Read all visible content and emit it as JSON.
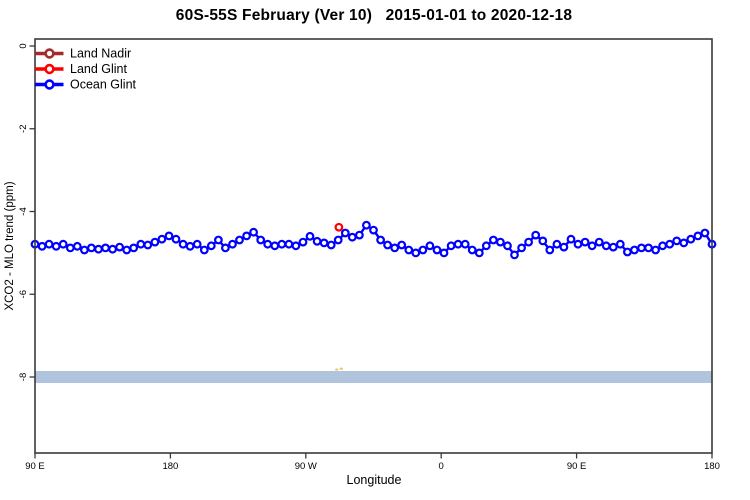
{
  "title": "60S-55S February (Ver 10)   2015-01-01 to 2020-12-18",
  "axes": {
    "x_label": "Longitude",
    "y_label": "XCO2 - MLO trend (ppm)",
    "x_tick_labels": [
      "90 E",
      "180",
      "90 W",
      "0",
      "90 E",
      "180"
    ],
    "y_tick_labels": [
      "0",
      "-2",
      "-4",
      "-6",
      "-8"
    ]
  },
  "legend": {
    "items": [
      {
        "label": "Land Nadir",
        "color": "#A52A2A"
      },
      {
        "label": "Land Glint",
        "color": "#FF0000"
      },
      {
        "label": "Ocean Glint",
        "color": "#0000FF"
      }
    ]
  },
  "colors": {
    "axis": "#3a3a3a",
    "band": "#B0C4DE",
    "yellow_mark": "#E8C96E",
    "marker_fill": "#ffffff"
  },
  "chart_data": {
    "type": "line",
    "title": "60S-55S February (Ver 10)   2015-01-01 to 2020-12-18",
    "xlabel": "Longitude",
    "ylabel": "XCO2 - MLO trend (ppm)",
    "x_axis": {
      "start_deg": 90,
      "end_deg": 540,
      "tick_positions_deg": [
        90,
        180,
        270,
        360,
        450,
        540
      ],
      "tick_labels": [
        "90 E",
        "180",
        "90 W",
        "0",
        "90 E",
        "180"
      ],
      "note": "longitude axis wraps eastward starting at 90E"
    },
    "ylim": [
      -9.84,
      0.17
    ],
    "y_tick_values": [
      0,
      -2,
      -4,
      -6,
      -8
    ],
    "grid": false,
    "legend_position": "top-left",
    "band": {
      "value": -8.0,
      "half_width": 0.145,
      "color": "#B0C4DE"
    },
    "extra_marks": [
      {
        "name": "yellow-dash",
        "color": "#E8C96E",
        "lon_deg": 290.6,
        "value": -7.82
      },
      {
        "name": "yellow-dash",
        "color": "#E8C96E",
        "lon_deg": 293.6,
        "value": -7.8
      }
    ],
    "series": [
      {
        "name": "Land Nadir",
        "color": "#A52A2A",
        "marker": "open-circle",
        "points": []
      },
      {
        "name": "Land Glint",
        "color": "#FF0000",
        "marker": "open-circle",
        "points": [
          {
            "lon_deg": 292,
            "value": -4.38
          }
        ]
      },
      {
        "name": "Ocean Glint",
        "color": "#0000FF",
        "marker": "open-circle",
        "x_start_deg": 90,
        "x_step_deg": 4.6875,
        "values": [
          -4.79,
          -4.84,
          -4.79,
          -4.84,
          -4.79,
          -4.88,
          -4.84,
          -4.93,
          -4.88,
          -4.91,
          -4.88,
          -4.91,
          -4.86,
          -4.93,
          -4.88,
          -4.79,
          -4.81,
          -4.74,
          -4.67,
          -4.59,
          -4.67,
          -4.79,
          -4.84,
          -4.79,
          -4.93,
          -4.83,
          -4.69,
          -4.88,
          -4.79,
          -4.69,
          -4.59,
          -4.5,
          -4.69,
          -4.79,
          -4.83,
          -4.79,
          -4.79,
          -4.83,
          -4.74,
          -4.6,
          -4.72,
          -4.76,
          -4.81,
          -4.69,
          -4.52,
          -4.62,
          -4.57,
          -4.33,
          -4.45,
          -4.69,
          -4.81,
          -4.88,
          -4.81,
          -4.93,
          -5.0,
          -4.93,
          -4.83,
          -4.93,
          -5.0,
          -4.83,
          -4.79,
          -4.79,
          -4.93,
          -5.0,
          -4.83,
          -4.69,
          -4.74,
          -4.83,
          -5.05,
          -4.88,
          -4.74,
          -4.57,
          -4.71,
          -4.93,
          -4.79,
          -4.86,
          -4.67,
          -4.79,
          -4.74,
          -4.83,
          -4.74,
          -4.83,
          -4.86,
          -4.79,
          -4.98,
          -4.93,
          -4.88,
          -4.88,
          -4.93,
          -4.83,
          -4.79,
          -4.71,
          -4.76,
          -4.67,
          -4.59,
          -4.52,
          -4.79
        ]
      }
    ]
  }
}
